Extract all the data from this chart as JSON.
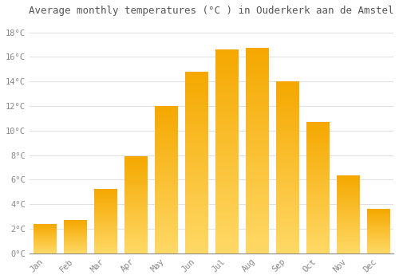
{
  "months": [
    "Jan",
    "Feb",
    "Mar",
    "Apr",
    "May",
    "Jun",
    "Jul",
    "Aug",
    "Sep",
    "Oct",
    "Nov",
    "Dec"
  ],
  "values": [
    2.4,
    2.7,
    5.2,
    7.9,
    12.0,
    14.8,
    16.6,
    16.7,
    14.0,
    10.7,
    6.3,
    3.6
  ],
  "bar_color_top": "#F5A800",
  "bar_color_bottom": "#FFD966",
  "title": "Average monthly temperatures (°C ) in Ouderkerk aan de Amstel",
  "ylabel_ticks": [
    "0°C",
    "2°C",
    "4°C",
    "6°C",
    "8°C",
    "10°C",
    "12°C",
    "14°C",
    "16°C",
    "18°C"
  ],
  "ytick_values": [
    0,
    2,
    4,
    6,
    8,
    10,
    12,
    14,
    16,
    18
  ],
  "ylim": [
    0,
    19
  ],
  "background_color": "#FFFFFF",
  "grid_color": "#E0E0E0",
  "title_fontsize": 9,
  "tick_fontsize": 7.5,
  "font_family": "monospace",
  "bar_width": 0.75
}
